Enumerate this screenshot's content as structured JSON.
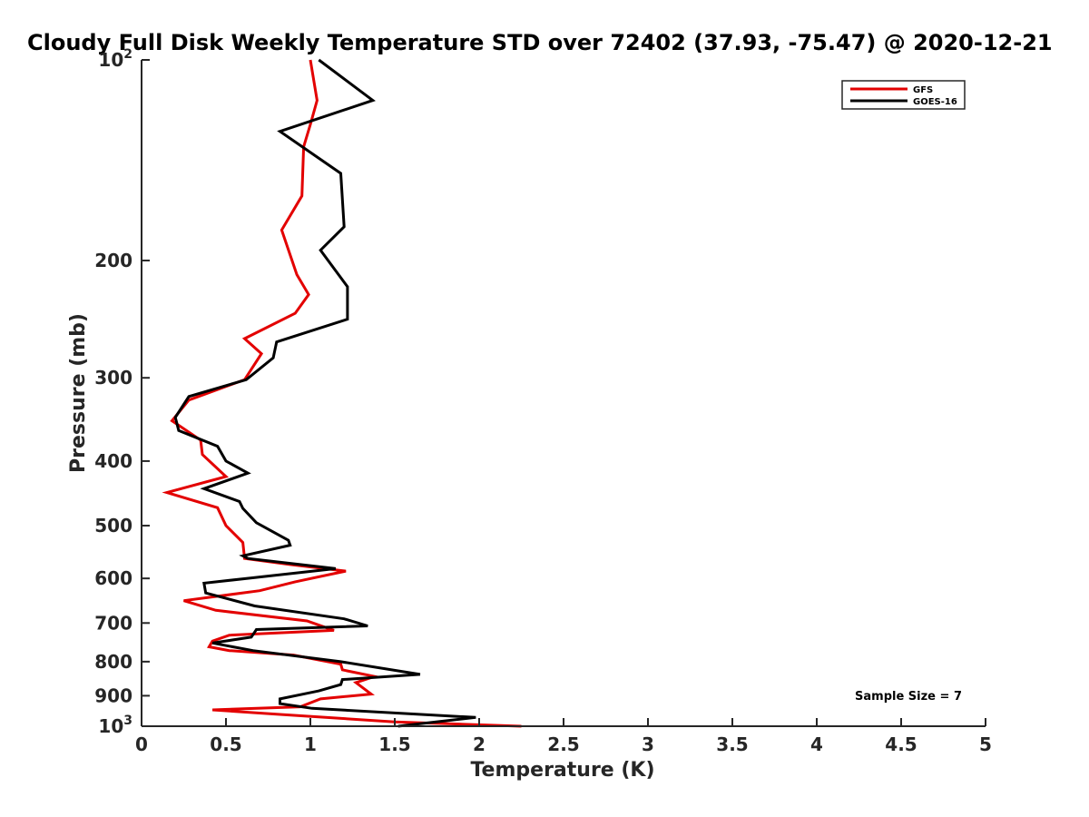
{
  "chart_data": {
    "type": "line",
    "title": "Cloudy Full Disk Weekly Temperature STD over 72402 (37.93, -75.47) @ 2020-12-21",
    "xlabel": "Temperature (K)",
    "ylabel": "Pressure (mb)",
    "xlim": [
      0,
      5
    ],
    "ylim": [
      1000,
      100
    ],
    "y_scale": "log",
    "y_reversed": true,
    "grid": false,
    "legend_position": "top-right",
    "x_ticks": [
      "0",
      "0.5",
      "1",
      "1.5",
      "2",
      "2.5",
      "3",
      "3.5",
      "4",
      "4.5",
      "5"
    ],
    "y_ticks": [
      {
        "value": 100,
        "base": "10",
        "exp": "2"
      },
      {
        "value": 200,
        "label": "200"
      },
      {
        "value": 300,
        "label": "300"
      },
      {
        "value": 400,
        "label": "400"
      },
      {
        "value": 500,
        "label": "500"
      },
      {
        "value": 600,
        "label": "600"
      },
      {
        "value": 700,
        "label": "700"
      },
      {
        "value": 800,
        "label": "800"
      },
      {
        "value": 900,
        "label": "900"
      },
      {
        "value": 1000,
        "base": "10",
        "exp": "3"
      }
    ],
    "series": [
      {
        "name": "GFS",
        "color": "#e30000",
        "points": [
          [
            1.0,
            100
          ],
          [
            1.04,
            115
          ],
          [
            1.0,
            125
          ],
          [
            0.96,
            135
          ],
          [
            0.95,
            160
          ],
          [
            0.83,
            180
          ],
          [
            0.92,
            210
          ],
          [
            0.99,
            225
          ],
          [
            0.91,
            240
          ],
          [
            0.61,
            262
          ],
          [
            0.71,
            276
          ],
          [
            0.61,
            302
          ],
          [
            0.28,
            324
          ],
          [
            0.18,
            348
          ],
          [
            0.35,
            372
          ],
          [
            0.36,
            391
          ],
          [
            0.5,
            422
          ],
          [
            0.15,
            446
          ],
          [
            0.45,
            470
          ],
          [
            0.5,
            500
          ],
          [
            0.6,
            530
          ],
          [
            0.61,
            560
          ],
          [
            0.88,
            572
          ],
          [
            1.21,
            585
          ],
          [
            0.91,
            607
          ],
          [
            0.7,
            626
          ],
          [
            0.25,
            648
          ],
          [
            0.44,
            670
          ],
          [
            0.98,
            695
          ],
          [
            1.14,
            718
          ],
          [
            0.52,
            730
          ],
          [
            0.42,
            745
          ],
          [
            0.4,
            760
          ],
          [
            0.52,
            770
          ],
          [
            0.9,
            782
          ],
          [
            1.18,
            807
          ],
          [
            1.19,
            823
          ],
          [
            1.38,
            842
          ],
          [
            1.27,
            860
          ],
          [
            1.36,
            895
          ],
          [
            1.06,
            910
          ],
          [
            0.94,
            935
          ],
          [
            0.42,
            945
          ],
          [
            0.82,
            960
          ],
          [
            1.5,
            985
          ],
          [
            2.25,
            1000
          ]
        ]
      },
      {
        "name": "GOES-16",
        "color": "#000000",
        "points": [
          [
            1.05,
            100
          ],
          [
            1.37,
            115
          ],
          [
            0.82,
            128
          ],
          [
            1.18,
            148
          ],
          [
            1.2,
            178
          ],
          [
            1.06,
            193
          ],
          [
            1.22,
            219
          ],
          [
            1.22,
            245
          ],
          [
            0.8,
            265
          ],
          [
            0.78,
            280
          ],
          [
            0.62,
            302
          ],
          [
            0.28,
            320
          ],
          [
            0.2,
            344
          ],
          [
            0.22,
            360
          ],
          [
            0.45,
            380
          ],
          [
            0.5,
            400
          ],
          [
            0.63,
            417
          ],
          [
            0.37,
            440
          ],
          [
            0.58,
            460
          ],
          [
            0.6,
            471
          ],
          [
            0.68,
            495
          ],
          [
            0.87,
            526
          ],
          [
            0.88,
            535
          ],
          [
            0.6,
            555
          ],
          [
            0.63,
            560
          ],
          [
            1.15,
            580
          ],
          [
            0.37,
            610
          ],
          [
            0.38,
            631
          ],
          [
            0.67,
            660
          ],
          [
            1.2,
            690
          ],
          [
            1.34,
            707
          ],
          [
            0.68,
            716
          ],
          [
            0.65,
            735
          ],
          [
            0.42,
            750
          ],
          [
            0.66,
            770
          ],
          [
            1.18,
            800
          ],
          [
            1.65,
            836
          ],
          [
            1.19,
            851
          ],
          [
            1.18,
            866
          ],
          [
            1.05,
            885
          ],
          [
            0.82,
            910
          ],
          [
            0.82,
            925
          ],
          [
            1.01,
            940
          ],
          [
            1.98,
            970
          ],
          [
            1.52,
            1000
          ]
        ]
      }
    ],
    "annotation": "Sample Size = 7"
  }
}
